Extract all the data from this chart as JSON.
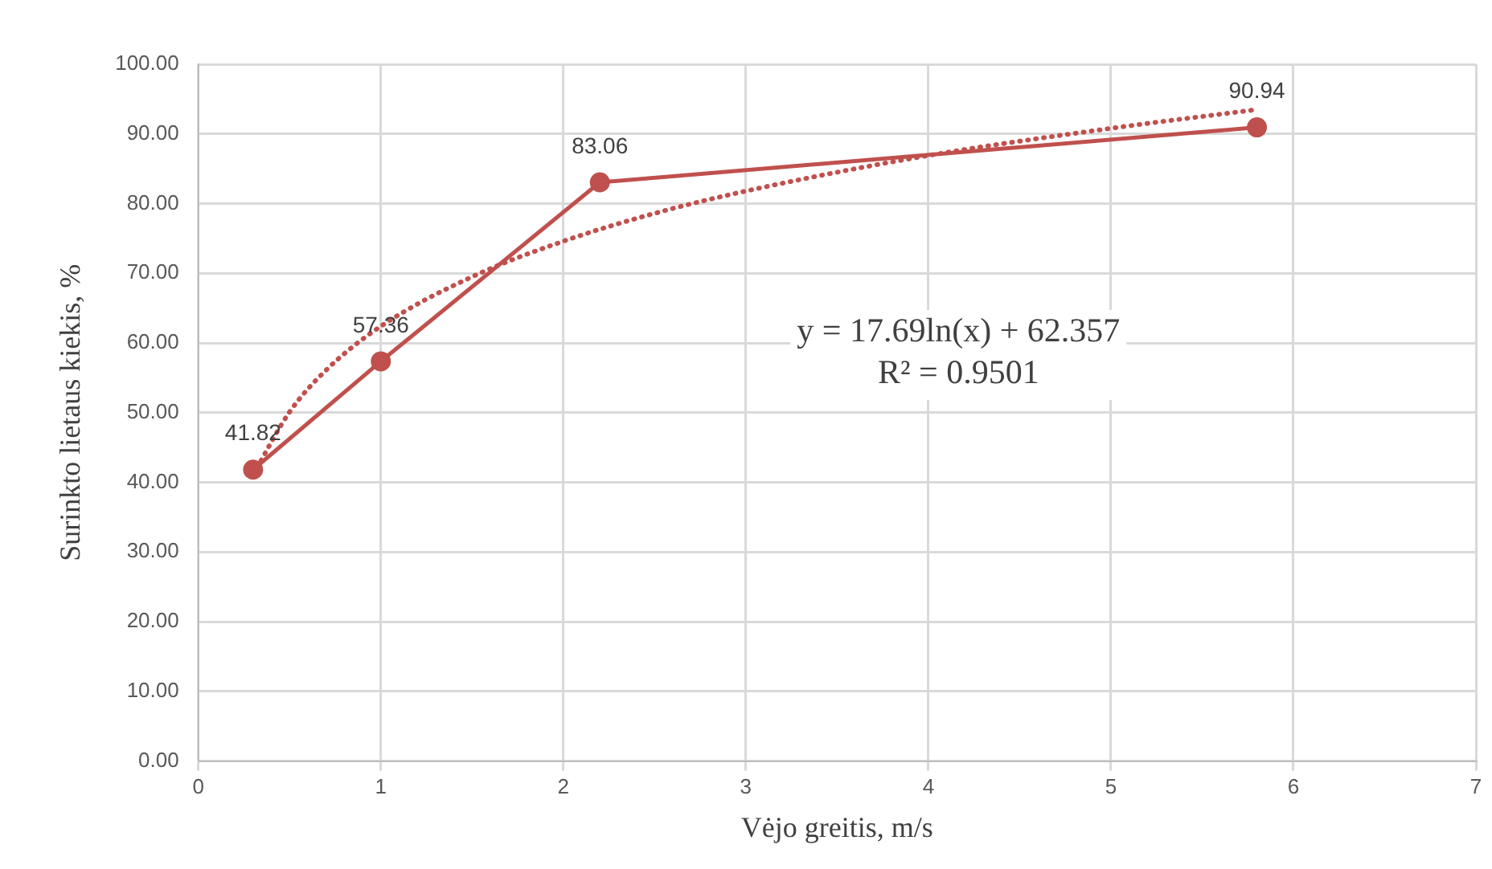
{
  "chart_data": {
    "type": "line",
    "xlabel": "Vėjo greitis, m/s",
    "ylabel": "Surinkto lietaus kiekis, %",
    "xlim": [
      0,
      7
    ],
    "xticks": [
      0,
      1,
      2,
      3,
      4,
      5,
      6,
      7
    ],
    "ylim": [
      0,
      100
    ],
    "yticks": [
      {
        "value": 0,
        "label": "0.00"
      },
      {
        "value": 10,
        "label": "10.00"
      },
      {
        "value": 20,
        "label": "20.00"
      },
      {
        "value": 30,
        "label": "30.00"
      },
      {
        "value": 40,
        "label": "40.00"
      },
      {
        "value": 50,
        "label": "50.00"
      },
      {
        "value": 60,
        "label": "60.00"
      },
      {
        "value": 70,
        "label": "70.00"
      },
      {
        "value": 80,
        "label": "80.00"
      },
      {
        "value": 90,
        "label": "90.00"
      },
      {
        "value": 100,
        "label": "100.00"
      }
    ],
    "grid": true,
    "legend": false,
    "marker": "circle",
    "line_style": "solid",
    "series": [
      {
        "color": "#c0504d",
        "x": [
          0.3,
          1,
          2.2,
          5.8
        ],
        "values": [
          41.82,
          57.36,
          83.06,
          90.94
        ],
        "value_labels": [
          "41.82",
          "57.36",
          "83.06",
          "90.94"
        ]
      },
      {
        "type": "line",
        "color": "#c0504d",
        "marker": "none",
        "line_style": "dotted",
        "x": [
          0.3,
          0.5,
          0.7,
          1,
          1.5,
          2,
          2.5,
          3,
          4,
          5,
          5.8
        ],
        "values": [
          41.1,
          50.1,
          56.1,
          62.4,
          69.5,
          74.6,
          78.6,
          81.8,
          86.9,
          90.8,
          93.5
        ]
      }
    ],
    "annotations": [
      "y = 17.69ln(x) + 62.357\nR² = 0.9501"
    ]
  }
}
